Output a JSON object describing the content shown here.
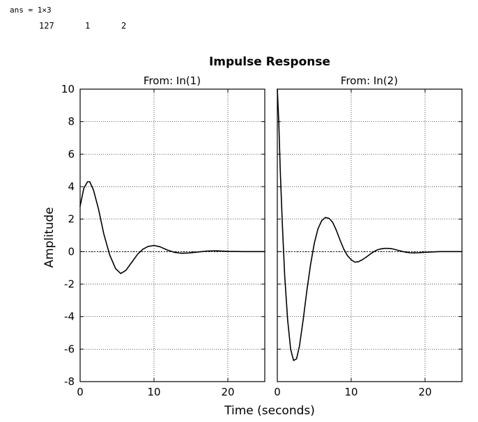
{
  "console": {
    "ans_line": "ans = 1×3",
    "values": [
      "127",
      "1",
      "2"
    ]
  },
  "chart_data": {
    "type": "line",
    "title": "Impulse Response",
    "xlabel": "Time (seconds)",
    "ylabel": "Amplitude",
    "ylim": [
      -8,
      10
    ],
    "yticks": [
      -8,
      -6,
      -4,
      -2,
      0,
      2,
      4,
      6,
      8,
      10
    ],
    "grid": true,
    "line_color": "#000000",
    "panels": [
      {
        "subtitle": "From: In(1)",
        "xlim": [
          0,
          25
        ],
        "xticks": [
          0,
          10,
          20
        ],
        "series": [
          {
            "x": [
              0,
              0.5,
              1,
              1.3,
              1.8,
              2.5,
              3.2,
              4,
              4.8,
              5.5,
              6.2,
              7,
              7.8,
              8.5,
              9.2,
              10,
              10.8,
              11.8,
              12.8,
              13.8,
              14.8,
              16,
              17.2,
              18.5,
              20,
              22,
              25
            ],
            "y": [
              2.8,
              3.9,
              4.3,
              4.3,
              3.8,
              2.6,
              1.1,
              -0.2,
              -1.05,
              -1.35,
              -1.15,
              -0.65,
              -0.15,
              0.15,
              0.32,
              0.38,
              0.3,
              0.1,
              -0.05,
              -0.1,
              -0.08,
              -0.02,
              0.03,
              0.05,
              0.02,
              0,
              0
            ]
          }
        ]
      },
      {
        "subtitle": "From: In(2)",
        "xlim": [
          0,
          25
        ],
        "xticks": [
          0,
          10,
          20
        ],
        "series": [
          {
            "x": [
              0,
              0.2,
              0.4,
              0.7,
              1,
              1.4,
              1.8,
              2.2,
              2.6,
              3,
              3.5,
              4,
              4.5,
              5,
              5.5,
              6,
              6.5,
              7,
              7.5,
              8,
              8.5,
              9,
              9.5,
              10,
              10.5,
              11,
              11.5,
              12,
              12.5,
              13,
              13.5,
              14,
              14.5,
              15,
              15.5,
              16,
              16.5,
              17,
              17.5,
              18,
              18.5,
              19,
              20,
              21,
              22,
              25
            ],
            "y": [
              10,
              8,
              5,
              1.5,
              -1.5,
              -4.2,
              -6,
              -6.7,
              -6.6,
              -5.8,
              -4.2,
              -2.4,
              -0.8,
              0.5,
              1.4,
              1.9,
              2.1,
              2.05,
              1.8,
              1.3,
              0.7,
              0.15,
              -0.25,
              -0.5,
              -0.65,
              -0.62,
              -0.5,
              -0.35,
              -0.18,
              -0.02,
              0.1,
              0.17,
              0.2,
              0.2,
              0.18,
              0.12,
              0.06,
              0,
              -0.04,
              -0.07,
              -0.08,
              -0.07,
              -0.04,
              -0.02,
              0,
              0
            ]
          }
        ]
      }
    ]
  }
}
